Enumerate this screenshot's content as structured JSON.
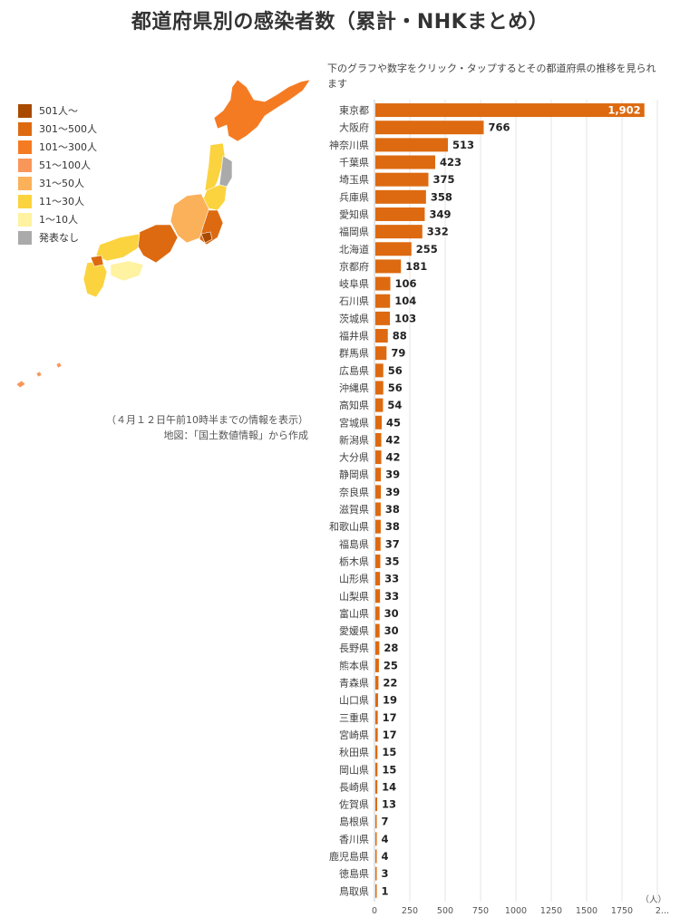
{
  "header": {
    "title": "都道府県別の感染者数（累計・NHKまとめ）"
  },
  "instruction": "下のグラフや数字をクリック・タップするとその都道府県の推移を見られます",
  "legend": {
    "items": [
      {
        "label": "501人～",
        "color": "#a84a00"
      },
      {
        "label": "301～500人",
        "color": "#dd6a10"
      },
      {
        "label": "101～300人",
        "color": "#f57b22"
      },
      {
        "label": "51～100人",
        "color": "#f9965a"
      },
      {
        "label": "31～50人",
        "color": "#fbb05a"
      },
      {
        "label": "11～30人",
        "color": "#fbd33e"
      },
      {
        "label": "1～10人",
        "color": "#fff2a0"
      },
      {
        "label": "発表なし",
        "color": "#aaaaaa"
      }
    ]
  },
  "map_note": {
    "line1": "（４月１２日午前10時半までの情報を表示）",
    "line2": "地図：「国土数値情報」から作成"
  },
  "chart_data": {
    "type": "bar",
    "orientation": "horizontal",
    "categories": [
      "東京都",
      "大阪府",
      "神奈川県",
      "千葉県",
      "埼玉県",
      "兵庫県",
      "愛知県",
      "福岡県",
      "北海道",
      "京都府",
      "岐阜県",
      "石川県",
      "茨城県",
      "福井県",
      "群馬県",
      "広島県",
      "沖縄県",
      "高知県",
      "宮城県",
      "新潟県",
      "大分県",
      "静岡県",
      "奈良県",
      "滋賀県",
      "和歌山県",
      "福島県",
      "栃木県",
      "山形県",
      "山梨県",
      "富山県",
      "愛媛県",
      "長野県",
      "熊本県",
      "青森県",
      "山口県",
      "三重県",
      "宮崎県",
      "秋田県",
      "岡山県",
      "長崎県",
      "佐賀県",
      "島根県",
      "香川県",
      "鹿児島県",
      "徳島県",
      "鳥取県"
    ],
    "values": [
      1902,
      766,
      513,
      423,
      375,
      358,
      349,
      332,
      255,
      181,
      106,
      104,
      103,
      88,
      79,
      56,
      56,
      54,
      45,
      42,
      42,
      39,
      39,
      38,
      38,
      37,
      35,
      33,
      33,
      30,
      30,
      28,
      25,
      22,
      19,
      17,
      17,
      15,
      15,
      14,
      13,
      7,
      4,
      4,
      3,
      1
    ],
    "value_labels": [
      "1,902",
      "766",
      "513",
      "423",
      "375",
      "358",
      "349",
      "332",
      "255",
      "181",
      "106",
      "104",
      "103",
      "88",
      "79",
      "56",
      "56",
      "54",
      "45",
      "42",
      "42",
      "39",
      "39",
      "38",
      "38",
      "37",
      "35",
      "33",
      "33",
      "30",
      "30",
      "28",
      "25",
      "22",
      "19",
      "17",
      "17",
      "15",
      "15",
      "14",
      "13",
      "7",
      "4",
      "4",
      "3",
      "1"
    ],
    "x_ticks": [
      "0",
      "250",
      "500",
      "750",
      "1000",
      "1250",
      "1500",
      "1750",
      "2..."
    ],
    "x_tick_values": [
      0,
      250,
      500,
      750,
      1000,
      1250,
      1500,
      1750,
      2000
    ],
    "xlim": [
      0,
      2000
    ],
    "unit": "（人）",
    "bar_color": "#dd6a10",
    "grid": true
  },
  "map_colors": {
    "hokkaido": "#f57b22",
    "tohoku_north": "#fbd33e",
    "tohoku_iwate": "#aaaaaa",
    "tohoku_south": "#fbd33e",
    "kanto": "#dd6a10",
    "tokyo": "#a84a00",
    "chubu": "#fbb05a",
    "kansai": "#dd6a10",
    "chugoku": "#fbd33e",
    "shikoku": "#fff2a0",
    "kyushu": "#fbd33e",
    "fukuoka": "#dd6a10",
    "okinawa": "#f9965a"
  }
}
